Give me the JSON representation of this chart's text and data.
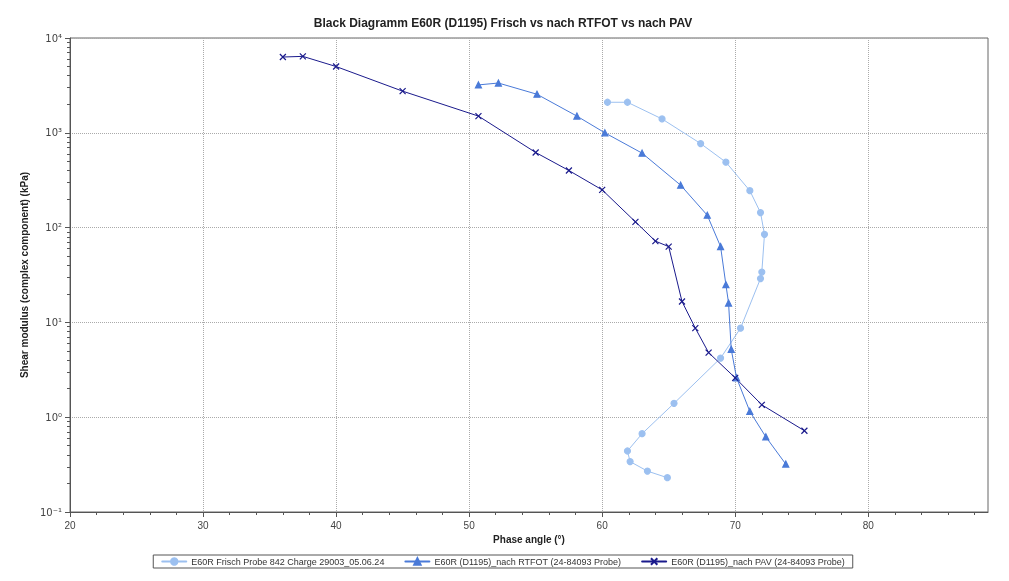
{
  "chart_data": {
    "type": "line",
    "title": "Black Diagramm E60R (D1195) Frisch vs nach RTFOT vs nach PAV",
    "xlabel": "Phase angle (°)",
    "ylabel": "Shear modulus (complex component) (kPa)",
    "log": "y",
    "grid": true,
    "legend": "bottom",
    "line_style": "solid",
    "xlim": [
      20,
      89
    ],
    "xticks": [
      20,
      30,
      40,
      50,
      60,
      70,
      80
    ],
    "ylim": [
      0.1,
      10000
    ],
    "yticks": [
      {
        "value": 0.1,
        "label": "10⁻¹"
      },
      {
        "value": 1,
        "label": "10⁰"
      },
      {
        "value": 10,
        "label": "10¹"
      },
      {
        "value": 100,
        "label": "10²"
      },
      {
        "value": 1000,
        "label": "10³"
      },
      {
        "value": 10000,
        "label": "10⁴"
      }
    ],
    "series": [
      {
        "name": "E60R Frisch Probe 842 Charge 29003_05.06.24",
        "color": "#9cc0f0",
        "marker": "circle",
        "x": [
          60.4,
          61.9,
          64.5,
          67.4,
          69.3,
          71.1,
          71.9,
          72.2,
          72.0,
          71.9,
          70.4,
          68.9,
          65.4,
          63.0,
          61.9,
          62.1,
          63.4,
          64.9
        ],
        "values": [
          2100,
          2100,
          1400,
          770,
          490,
          245,
          144,
          85,
          34,
          29,
          8.7,
          4.2,
          1.4,
          0.67,
          0.44,
          0.34,
          0.27,
          0.23
        ]
      },
      {
        "name": "E60R (D1195)_nach RTFOT (24-84093 Probe)",
        "color": "#4a7ad8",
        "marker": "triangle",
        "x": [
          50.7,
          52.2,
          55.1,
          58.1,
          60.2,
          63.0,
          65.9,
          67.9,
          68.9,
          69.3,
          69.5,
          69.7,
          70.1,
          71.1,
          72.3,
          73.8
        ],
        "values": [
          3200,
          3350,
          2550,
          1500,
          1000,
          610,
          280,
          135,
          63,
          25,
          16,
          5.2,
          2.6,
          1.15,
          0.62,
          0.32
        ]
      },
      {
        "name": "E60R (D1195)_nach PAV (24-84093 Probe)",
        "color": "#1a1a8c",
        "marker": "cross",
        "x": [
          36.0,
          37.5,
          40,
          45,
          50.7,
          55,
          57.5,
          60,
          62.5,
          64,
          65,
          66,
          67,
          68,
          70,
          72,
          75.2
        ],
        "values": [
          6300,
          6400,
          5000,
          2750,
          1500,
          620,
          400,
          250,
          115,
          72,
          63,
          16.6,
          8.7,
          4.8,
          2.6,
          1.35,
          0.72
        ]
      }
    ]
  }
}
